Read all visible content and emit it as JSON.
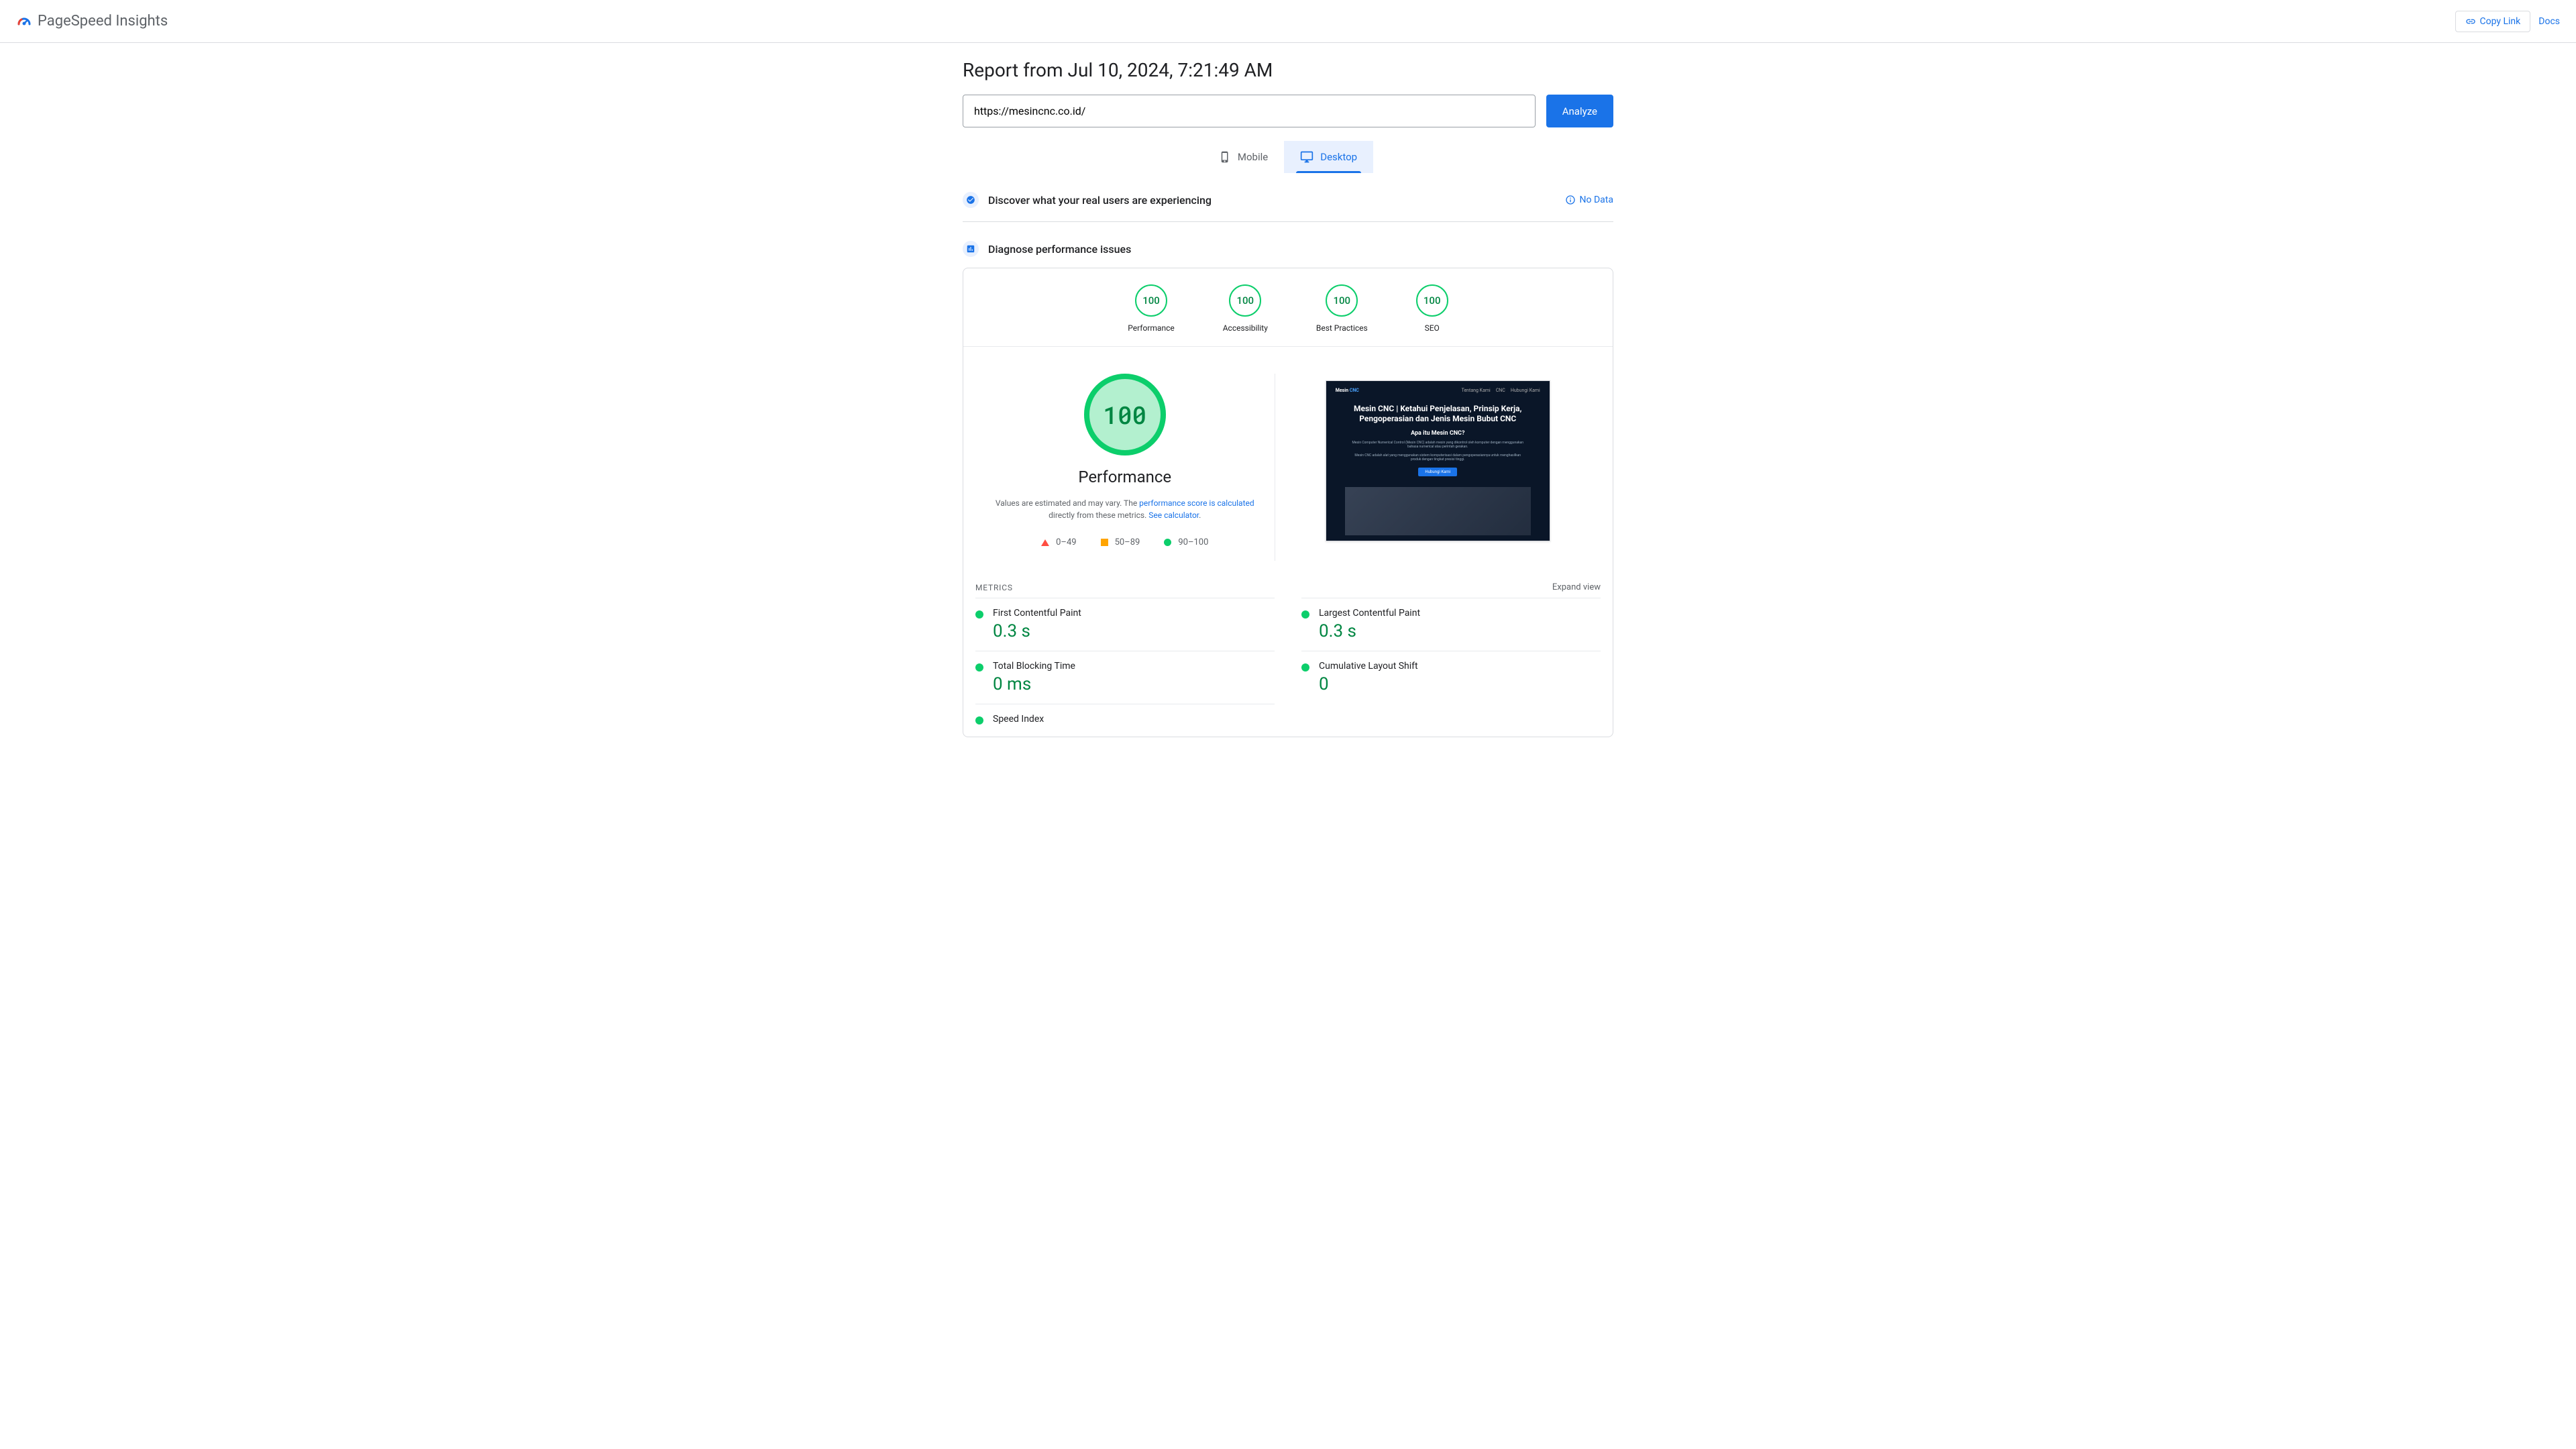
{
  "colors": {
    "primary": "#1a73e8",
    "good": "#0cce6b",
    "good_text": "#018642",
    "good_bg": "#b3f0cf",
    "avg": "#ffa400",
    "poor": "#ff4e42",
    "text_secondary": "#5f6368",
    "border": "#dadce0"
  },
  "header": {
    "product_name": "PageSpeed Insights",
    "copy_link": "Copy Link",
    "docs": "Docs"
  },
  "report": {
    "title": "Report from Jul 10, 2024, 7:21:49 AM",
    "url": "https://mesincnc.co.id/",
    "analyze": "Analyze"
  },
  "tabs": {
    "mobile": "Mobile",
    "desktop": "Desktop"
  },
  "sections": {
    "discover": "Discover what your real users are experiencing",
    "no_data": "No Data",
    "diagnose": "Diagnose performance issues"
  },
  "gauges": [
    {
      "score": "100",
      "label": "Performance"
    },
    {
      "score": "100",
      "label": "Accessibility"
    },
    {
      "score": "100",
      "label": "Best Practices"
    },
    {
      "score": "100",
      "label": "SEO"
    }
  ],
  "performance": {
    "score": "100",
    "heading": "Performance",
    "desc_prefix": "Values are estimated and may vary. The ",
    "desc_link1": "performance score is calculated",
    "desc_mid": " directly from these metrics. ",
    "desc_link2": "See calculator",
    "desc_suffix": "."
  },
  "legend": {
    "poor": "0–49",
    "avg": "50–89",
    "good": "90–100"
  },
  "screenshot": {
    "brand1": "Mesin ",
    "brand2": "CNC",
    "nav1": "Tentang Kami",
    "nav2": "CNC",
    "nav3": "Hubungi Kami",
    "h1": "Mesin CNC | Ketahui Penjelasan, Prinsip Kerja, Pengoperasian dan Jenis Mesin Bubut CNC",
    "h2": "Apa itu Mesin CNC?",
    "p1": "Mesin Computer Numerical Control (Mesin CNC) adalah mesin yang dikontrol oleh komputer dengan menggunakan bahasa numerical atau perintah gerakan.",
    "p2": "Mesin CNC adalah alat yang menggunakan sistem komputerisasi dalam pengoperasiannya untuk menghasilkan produk dengan tingkat presisi tinggi.",
    "btn": "Hubungi Kami"
  },
  "metrics": {
    "label": "METRICS",
    "expand": "Expand view",
    "items": [
      {
        "name": "First Contentful Paint",
        "value": "0.3 s",
        "status": "good"
      },
      {
        "name": "Largest Contentful Paint",
        "value": "0.3 s",
        "status": "good"
      },
      {
        "name": "Total Blocking Time",
        "value": "0 ms",
        "status": "good"
      },
      {
        "name": "Cumulative Layout Shift",
        "value": "0",
        "status": "good"
      },
      {
        "name": "Speed Index",
        "value": "",
        "status": "good"
      }
    ]
  }
}
